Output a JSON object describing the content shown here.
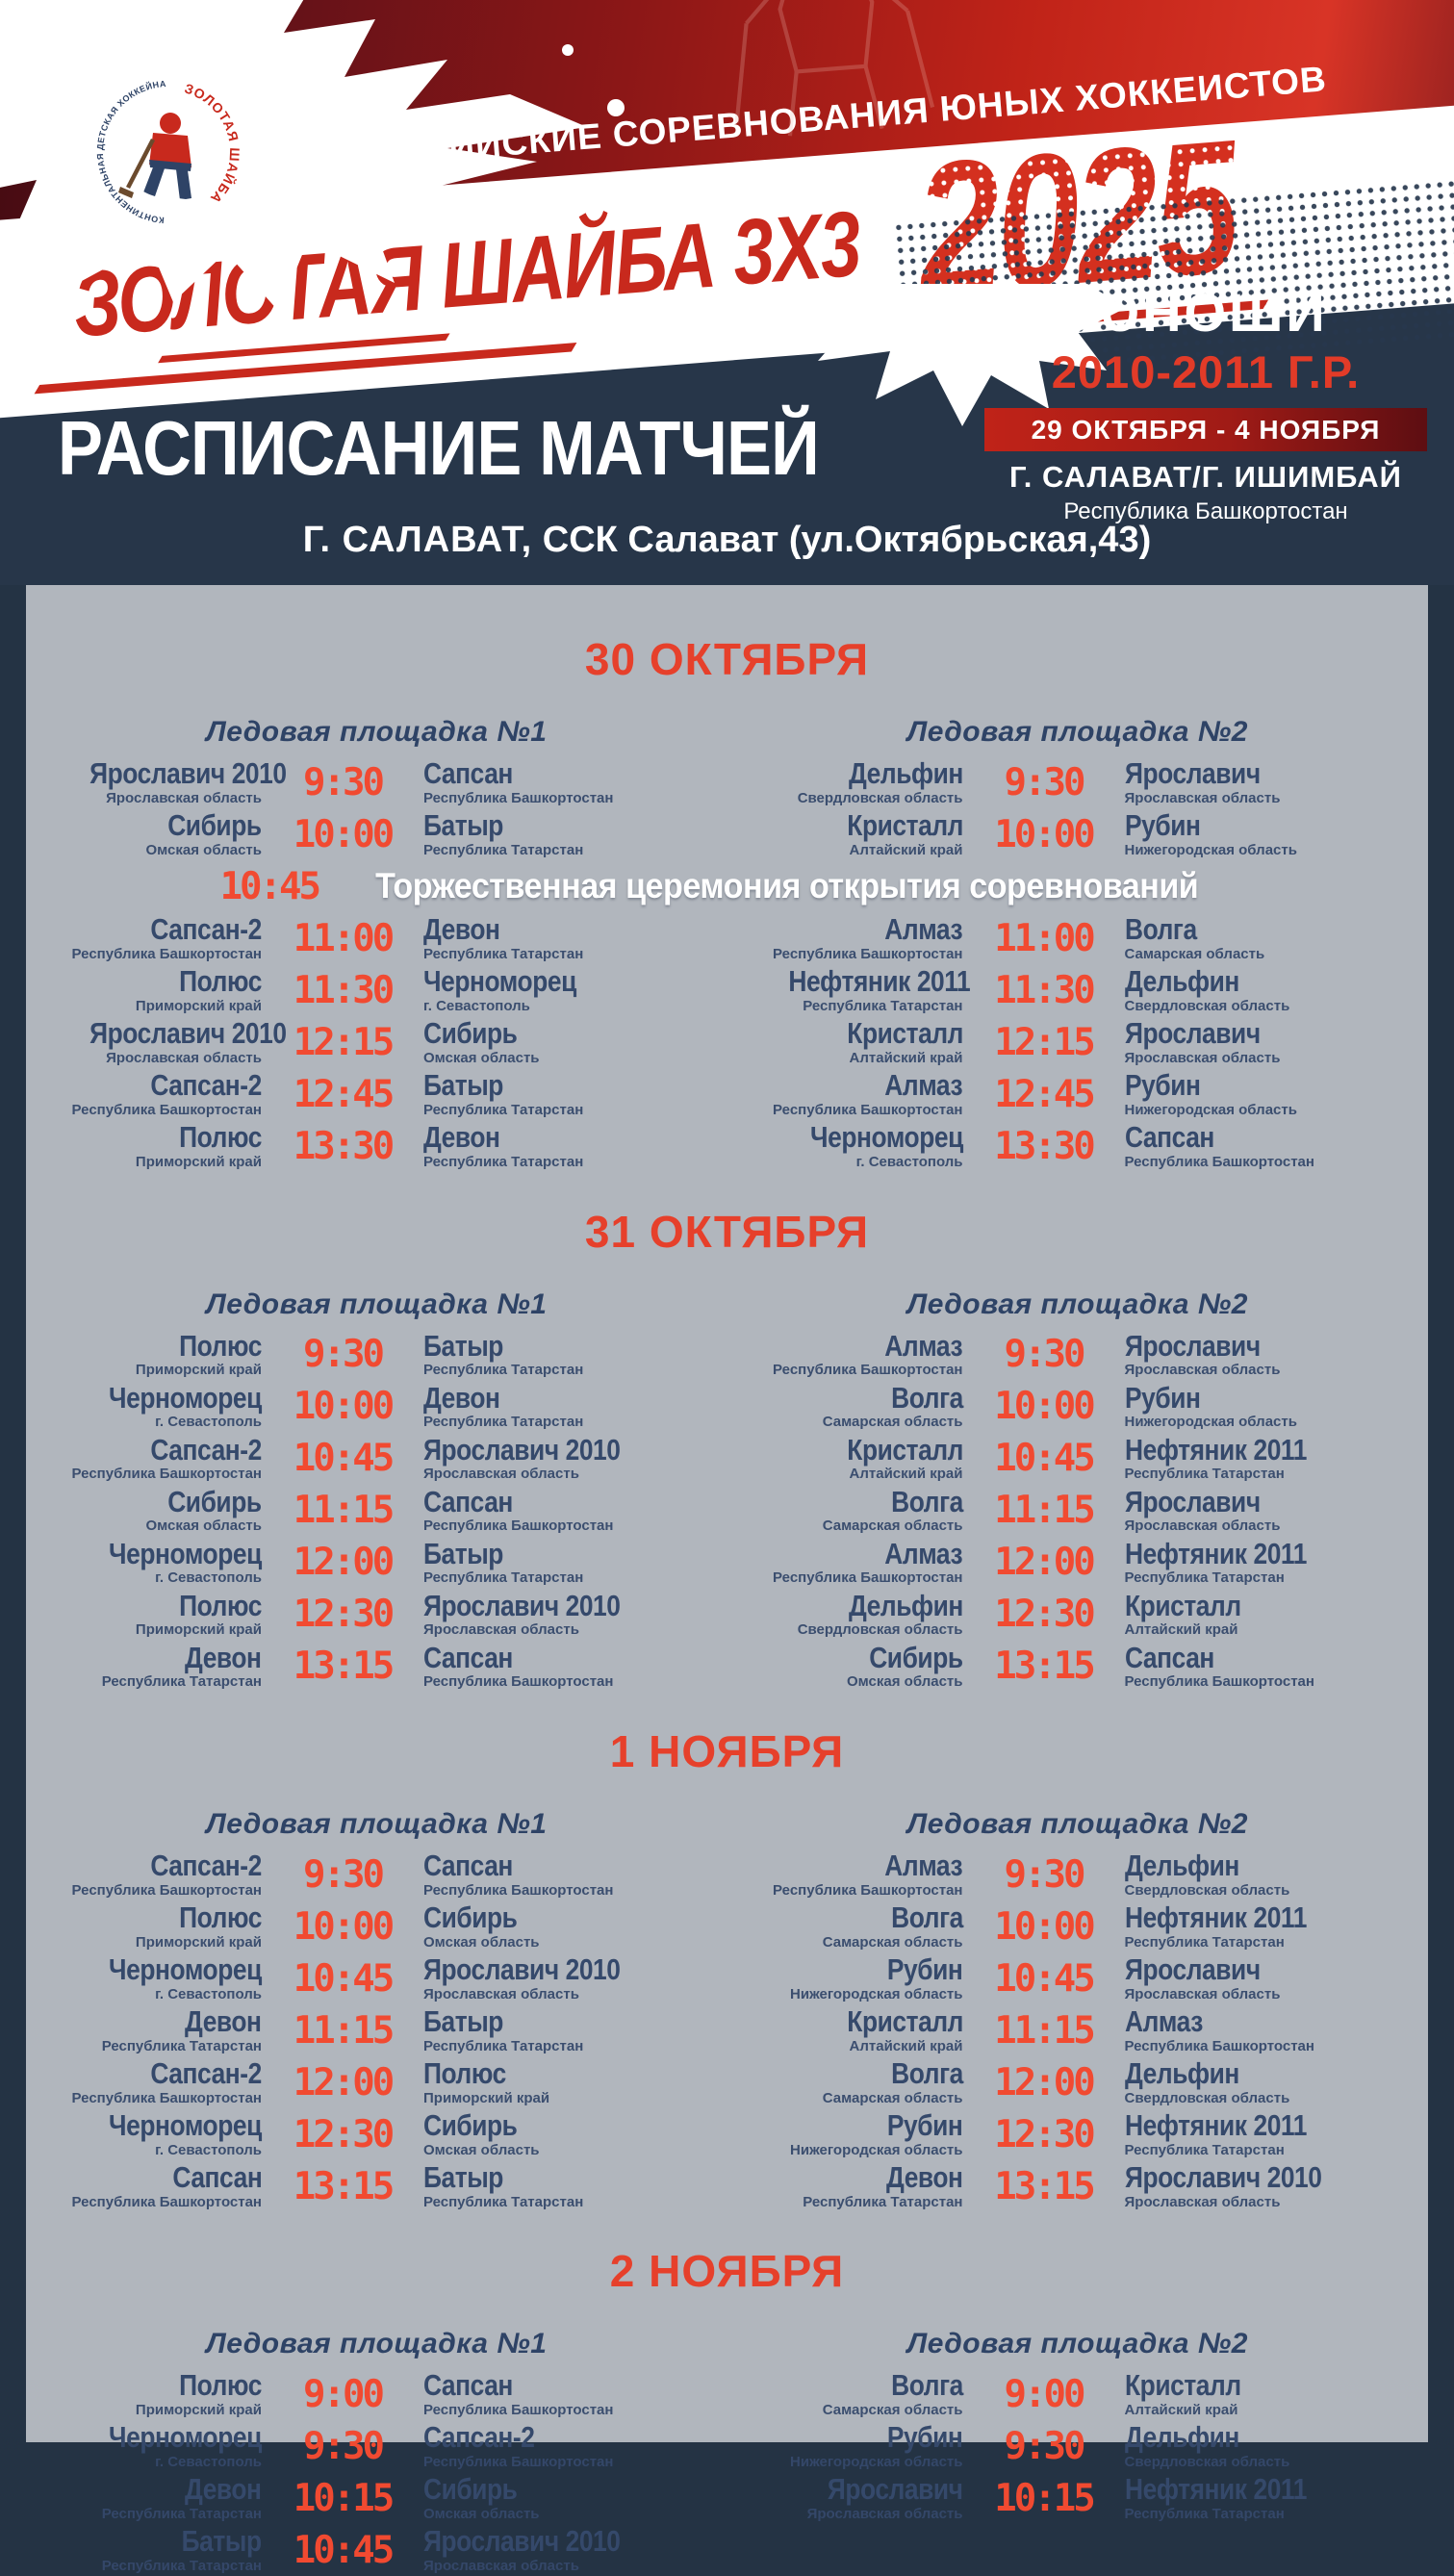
{
  "colors": {
    "page_navy": "#243344",
    "banner_navy": "#273649",
    "banner_red_bright": "#d83426",
    "banner_red_dark": "#2e0509",
    "title_red": "#c8291d",
    "accent_red": "#e6402b",
    "time_red": "#f14a31",
    "team_navy": "#35496b",
    "rink_header_navy": "#2e4366",
    "panel_gray": "#b1b6bd",
    "white": "#ffffff"
  },
  "banner": {
    "competition": "ВСЕРОССИЙСКИЕ СОРЕВНОВАНИЯ ЮНЫХ ХОККЕИСТОВ",
    "title_line": "ЗОЛОТАЯ ШАЙБА 3Х3",
    "year": "2025",
    "category": "ЮНОШИ",
    "age_group": "2010-2011 Г.Р.",
    "dates": "29 ОКТЯБРЯ - 4 НОЯБРЯ",
    "cities": "Г. САЛАВАТ/Г. ИШИМБАЙ",
    "region": "Республика Башкортостан",
    "logo": {
      "arc_right": "ЗОЛОТАЯ ШАЙБА",
      "arc_left": "КОНТИНЕНТАЛЬНАЯ ДЕТСКАЯ ХОККЕЙНАЯ ЛИГА"
    }
  },
  "schedule_header": {
    "title": "РАСПИСАНИЕ МАТЧЕЙ",
    "venue_prefix": "Г. САЛАВАТ,",
    "venue_rest": " ССК Салават (ул.Октябрьская,43)"
  },
  "days": [
    {
      "date": "30 ОКТЯБРЯ",
      "ceremony": {
        "insert_before": 2,
        "time": "10:45",
        "text": "Торжественная церемония открытия соревнований"
      },
      "rinks": [
        {
          "label": "Ледовая площадка №1",
          "matches": [
            {
              "home": "Ярославич 2010",
              "home_region": "Ярославская область",
              "time": "9:30",
              "away": "Сапсан",
              "away_region": "Республика Башкортостан"
            },
            {
              "home": "Сибирь",
              "home_region": "Омская область",
              "time": "10:00",
              "away": "Батыр",
              "away_region": "Республика Татарстан"
            },
            {
              "home": "Сапсан-2",
              "home_region": "Республика Башкортостан",
              "time": "11:00",
              "away": "Девон",
              "away_region": "Республика Татарстан"
            },
            {
              "home": "Полюс",
              "home_region": "Приморский край",
              "time": "11:30",
              "away": "Черноморец",
              "away_region": "г. Севастополь"
            },
            {
              "home": "Ярославич 2010",
              "home_region": "Ярославская область",
              "time": "12:15",
              "away": "Сибирь",
              "away_region": "Омская область"
            },
            {
              "home": "Сапсан-2",
              "home_region": "Республика Башкортостан",
              "time": "12:45",
              "away": "Батыр",
              "away_region": "Республика Татарстан"
            },
            {
              "home": "Полюс",
              "home_region": "Приморский край",
              "time": "13:30",
              "away": "Девон",
              "away_region": "Республика Татарстан"
            }
          ]
        },
        {
          "label": "Ледовая площадка №2",
          "matches": [
            {
              "home": "Дельфин",
              "home_region": "Свердловская область",
              "time": "9:30",
              "away": "Ярославич",
              "away_region": "Ярославская область"
            },
            {
              "home": "Кристалл",
              "home_region": "Алтайский край",
              "time": "10:00",
              "away": "Рубин",
              "away_region": "Нижегородская область"
            },
            {
              "home": "Алмаз",
              "home_region": "Республика Башкортостан",
              "time": "11:00",
              "away": "Волга",
              "away_region": "Самарская область"
            },
            {
              "home": "Нефтяник 2011",
              "home_region": "Республика Татарстан",
              "time": "11:30",
              "away": "Дельфин",
              "away_region": "Свердловская область"
            },
            {
              "home": "Кристалл",
              "home_region": "Алтайский край",
              "time": "12:15",
              "away": "Ярославич",
              "away_region": "Ярославская область"
            },
            {
              "home": "Алмаз",
              "home_region": "Республика Башкортостан",
              "time": "12:45",
              "away": "Рубин",
              "away_region": "Нижегородская область"
            },
            {
              "home": "Черноморец",
              "home_region": "г. Севастополь",
              "time": "13:30",
              "away": "Сапсан",
              "away_region": "Республика Башкортостан"
            }
          ]
        }
      ]
    },
    {
      "date": "31 ОКТЯБРЯ",
      "rinks": [
        {
          "label": "Ледовая площадка №1",
          "matches": [
            {
              "home": "Полюс",
              "home_region": "Приморский край",
              "time": "9:30",
              "away": "Батыр",
              "away_region": "Республика Татарстан"
            },
            {
              "home": "Черноморец",
              "home_region": "г. Севастополь",
              "time": "10:00",
              "away": "Девон",
              "away_region": "Республика Татарстан"
            },
            {
              "home": "Сапсан-2",
              "home_region": "Республика Башкортостан",
              "time": "10:45",
              "away": "Ярославич 2010",
              "away_region": "Ярославская область"
            },
            {
              "home": "Сибирь",
              "home_region": "Омская область",
              "time": "11:15",
              "away": "Сапсан",
              "away_region": "Республика Башкортостан"
            },
            {
              "home": "Черноморец",
              "home_region": "г. Севастополь",
              "time": "12:00",
              "away": "Батыр",
              "away_region": "Республика Татарстан"
            },
            {
              "home": "Полюс",
              "home_region": "Приморский край",
              "time": "12:30",
              "away": "Ярославич 2010",
              "away_region": "Ярославская область"
            },
            {
              "home": "Девон",
              "home_region": "Республика Татарстан",
              "time": "13:15",
              "away": "Сапсан",
              "away_region": "Республика Башкортостан"
            }
          ]
        },
        {
          "label": "Ледовая площадка №2",
          "matches": [
            {
              "home": "Алмаз",
              "home_region": "Республика Башкортостан",
              "time": "9:30",
              "away": "Ярославич",
              "away_region": "Ярославская область"
            },
            {
              "home": "Волга",
              "home_region": "Самарская область",
              "time": "10:00",
              "away": "Рубин",
              "away_region": "Нижегородская область"
            },
            {
              "home": "Кристалл",
              "home_region": "Алтайский край",
              "time": "10:45",
              "away": "Нефтяник 2011",
              "away_region": "Республика Татарстан"
            },
            {
              "home": "Волга",
              "home_region": "Самарская область",
              "time": "11:15",
              "away": "Ярославич",
              "away_region": "Ярославская область"
            },
            {
              "home": "Алмаз",
              "home_region": "Республика Башкортостан",
              "time": "12:00",
              "away": "Нефтяник 2011",
              "away_region": "Республика Татарстан"
            },
            {
              "home": "Дельфин",
              "home_region": "Свердловская область",
              "time": "12:30",
              "away": "Кристалл",
              "away_region": "Алтайский край"
            },
            {
              "home": "Сибирь",
              "home_region": "Омская область",
              "time": "13:15",
              "away": "Сапсан",
              "away_region": "Республика Башкортостан"
            }
          ]
        }
      ]
    },
    {
      "date": "1 НОЯБРЯ",
      "rinks": [
        {
          "label": "Ледовая площадка №1",
          "matches": [
            {
              "home": "Сапсан-2",
              "home_region": "Республика Башкортостан",
              "time": "9:30",
              "away": "Сапсан",
              "away_region": "Республика Башкортостан"
            },
            {
              "home": "Полюс",
              "home_region": "Приморский край",
              "time": "10:00",
              "away": "Сибирь",
              "away_region": "Омская область"
            },
            {
              "home": "Черноморец",
              "home_region": "г. Севастополь",
              "time": "10:45",
              "away": "Ярославич 2010",
              "away_region": "Ярославская область"
            },
            {
              "home": "Девон",
              "home_region": "Республика Татарстан",
              "time": "11:15",
              "away": "Батыр",
              "away_region": "Республика Татарстан"
            },
            {
              "home": "Сапсан-2",
              "home_region": "Республика Башкортостан",
              "time": "12:00",
              "away": "Полюс",
              "away_region": "Приморский край"
            },
            {
              "home": "Черноморец",
              "home_region": "г. Севастополь",
              "time": "12:30",
              "away": "Сибирь",
              "away_region": "Омская область"
            },
            {
              "home": "Сапсан",
              "home_region": "Республика Башкортостан",
              "time": "13:15",
              "away": "Батыр",
              "away_region": "Республика Татарстан"
            }
          ]
        },
        {
          "label": "Ледовая площадка №2",
          "matches": [
            {
              "home": "Алмаз",
              "home_region": "Республика Башкортостан",
              "time": "9:30",
              "away": "Дельфин",
              "away_region": "Свердловская область"
            },
            {
              "home": "Волга",
              "home_region": "Самарская область",
              "time": "10:00",
              "away": "Нефтяник 2011",
              "away_region": "Республика Татарстан"
            },
            {
              "home": "Рубин",
              "home_region": "Нижегородская область",
              "time": "10:45",
              "away": "Ярославич",
              "away_region": "Ярославская область"
            },
            {
              "home": "Кристалл",
              "home_region": "Алтайский край",
              "time": "11:15",
              "away": "Алмаз",
              "away_region": "Республика Башкортостан"
            },
            {
              "home": "Волга",
              "home_region": "Самарская область",
              "time": "12:00",
              "away": "Дельфин",
              "away_region": "Свердловская область"
            },
            {
              "home": "Рубин",
              "home_region": "Нижегородская область",
              "time": "12:30",
              "away": "Нефтяник 2011",
              "away_region": "Республика Татарстан"
            },
            {
              "home": "Девон",
              "home_region": "Республика Татарстан",
              "time": "13:15",
              "away": "Ярославич 2010",
              "away_region": "Ярославская область"
            }
          ]
        }
      ]
    },
    {
      "date": "2 НОЯБРЯ",
      "rinks": [
        {
          "label": "Ледовая площадка №1",
          "matches": [
            {
              "home": "Полюс",
              "home_region": "Приморский край",
              "time": "9:00",
              "away": "Сапсан",
              "away_region": "Республика Башкортостан"
            },
            {
              "home": "Черноморец",
              "home_region": "г. Севастополь",
              "time": "9:30",
              "away": "Сапсан-2",
              "away_region": "Республика Башкортостан"
            },
            {
              "home": "Девон",
              "home_region": "Республика Татарстан",
              "time": "10:15",
              "away": "Сибирь",
              "away_region": "Омская область"
            },
            {
              "home": "Батыр",
              "home_region": "Республика Татарстан",
              "time": "10:45",
              "away": "Ярославич 2010",
              "away_region": "Ярославская область"
            }
          ]
        },
        {
          "label": "Ледовая площадка №2",
          "matches": [
            {
              "home": "Волга",
              "home_region": "Самарская область",
              "time": "9:00",
              "away": "Кристалл",
              "away_region": "Алтайский край"
            },
            {
              "home": "Рубин",
              "home_region": "Нижегородская область",
              "time": "9:30",
              "away": "Дельфин",
              "away_region": "Свердловская область"
            },
            {
              "home": "Ярославич",
              "home_region": "Ярославская область",
              "time": "10:15",
              "away": "Нефтяник 2011",
              "away_region": "Республика Татарстан"
            }
          ]
        }
      ]
    }
  ]
}
